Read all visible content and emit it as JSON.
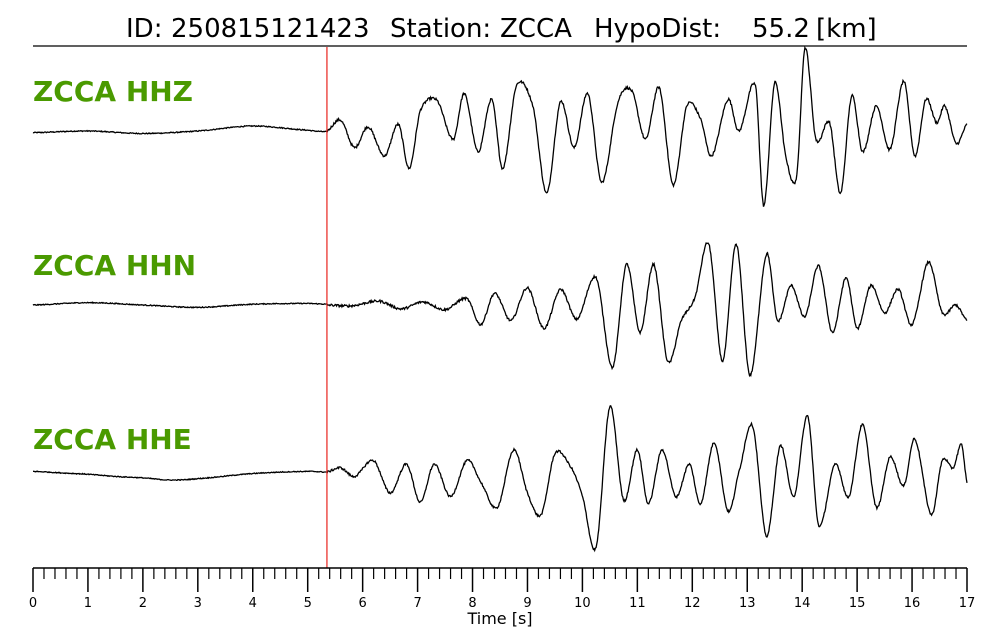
{
  "header": {
    "id_label": "ID:",
    "id_value": "250815121423",
    "station_label": "Station:",
    "station_value": "ZCCA",
    "hypodist_label": "HypoDist:",
    "hypodist_value": "55.2",
    "hypodist_unit": "[km]"
  },
  "colors": {
    "trace": "#000000",
    "label": "#4a9a00",
    "pick": "#e8231c",
    "axis": "#000000"
  },
  "chart_data": {
    "type": "line",
    "xlabel": "Time [s]",
    "xlim": [
      0,
      17
    ],
    "major_ticks": [
      0,
      1,
      2,
      3,
      4,
      5,
      6,
      7,
      8,
      9,
      10,
      11,
      12,
      13,
      14,
      15,
      16,
      17
    ],
    "minor_tick_step": 0.2,
    "pick_time": 5.35,
    "ylim": [
      -1,
      1
    ],
    "series": [
      {
        "name": "ZCCA HHZ",
        "pre_event": [
          [
            0,
            -0.02
          ],
          [
            1,
            0.0
          ],
          [
            2,
            -0.03
          ],
          [
            3,
            0.0
          ],
          [
            4,
            0.06
          ],
          [
            5,
            0.01
          ],
          [
            5.35,
            -0.01
          ]
        ],
        "coda": [
          [
            5.35,
            0.0
          ],
          [
            5.6,
            0.13
          ],
          [
            5.85,
            -0.2
          ],
          [
            6.1,
            0.05
          ],
          [
            6.4,
            -0.3
          ],
          [
            6.65,
            0.08
          ],
          [
            6.85,
            -0.45
          ],
          [
            7.05,
            0.25
          ],
          [
            7.35,
            0.37
          ],
          [
            7.65,
            -0.1
          ],
          [
            7.85,
            0.45
          ],
          [
            8.1,
            -0.25
          ],
          [
            8.35,
            0.38
          ],
          [
            8.55,
            -0.45
          ],
          [
            8.8,
            0.55
          ],
          [
            9.1,
            0.3
          ],
          [
            9.35,
            -0.75
          ],
          [
            9.6,
            0.35
          ],
          [
            9.85,
            -0.2
          ],
          [
            10.1,
            0.45
          ],
          [
            10.35,
            -0.62
          ],
          [
            10.65,
            0.35
          ],
          [
            10.9,
            0.48
          ],
          [
            11.15,
            -0.1
          ],
          [
            11.4,
            0.52
          ],
          [
            11.65,
            -0.65
          ],
          [
            11.9,
            0.3
          ],
          [
            12.15,
            0.15
          ],
          [
            12.35,
            -0.3
          ],
          [
            12.65,
            0.38
          ],
          [
            12.85,
            0.0
          ],
          [
            13.15,
            0.55
          ],
          [
            13.3,
            -0.9
          ],
          [
            13.5,
            0.58
          ],
          [
            13.7,
            -0.3
          ],
          [
            13.9,
            -0.55
          ],
          [
            14.05,
            1.0
          ],
          [
            14.25,
            -0.1
          ],
          [
            14.5,
            0.1
          ],
          [
            14.7,
            -0.75
          ],
          [
            14.9,
            0.42
          ],
          [
            15.1,
            -0.25
          ],
          [
            15.35,
            0.3
          ],
          [
            15.6,
            -0.22
          ],
          [
            15.85,
            0.6
          ],
          [
            16.05,
            -0.3
          ],
          [
            16.25,
            0.38
          ],
          [
            16.45,
            0.1
          ],
          [
            16.6,
            0.3
          ],
          [
            16.8,
            -0.15
          ],
          [
            17.0,
            0.08
          ]
        ]
      },
      {
        "name": "ZCCA HHN",
        "pre_event": [
          [
            0,
            0.0
          ],
          [
            1,
            0.03
          ],
          [
            2,
            0.0
          ],
          [
            3,
            -0.03
          ],
          [
            4,
            0.01
          ],
          [
            5,
            0.02
          ],
          [
            5.35,
            0.01
          ]
        ],
        "coda": [
          [
            5.35,
            0.0
          ],
          [
            5.8,
            -0.01
          ],
          [
            6.3,
            0.05
          ],
          [
            6.7,
            -0.05
          ],
          [
            7.1,
            0.04
          ],
          [
            7.5,
            -0.06
          ],
          [
            7.9,
            0.08
          ],
          [
            8.15,
            -0.25
          ],
          [
            8.4,
            0.15
          ],
          [
            8.7,
            -0.2
          ],
          [
            9.0,
            0.22
          ],
          [
            9.3,
            -0.3
          ],
          [
            9.6,
            0.2
          ],
          [
            9.9,
            -0.18
          ],
          [
            10.25,
            0.35
          ],
          [
            10.55,
            -0.8
          ],
          [
            10.8,
            0.52
          ],
          [
            11.05,
            -0.35
          ],
          [
            11.3,
            0.52
          ],
          [
            11.55,
            -0.72
          ],
          [
            11.8,
            -0.2
          ],
          [
            12.05,
            0.1
          ],
          [
            12.3,
            0.78
          ],
          [
            12.55,
            -0.72
          ],
          [
            12.8,
            0.78
          ],
          [
            13.05,
            -0.9
          ],
          [
            13.35,
            0.65
          ],
          [
            13.55,
            -0.2
          ],
          [
            13.8,
            0.25
          ],
          [
            14.05,
            -0.15
          ],
          [
            14.3,
            0.5
          ],
          [
            14.55,
            -0.35
          ],
          [
            14.8,
            0.35
          ],
          [
            15.0,
            -0.3
          ],
          [
            15.25,
            0.25
          ],
          [
            15.5,
            -0.1
          ],
          [
            15.75,
            0.2
          ],
          [
            16.0,
            -0.25
          ],
          [
            16.3,
            0.55
          ],
          [
            16.55,
            -0.1
          ],
          [
            16.8,
            0.0
          ],
          [
            17.0,
            -0.2
          ]
        ]
      },
      {
        "name": "ZCCA HHE",
        "pre_event": [
          [
            0,
            0.05
          ],
          [
            0.5,
            0.03
          ],
          [
            1,
            0.01
          ],
          [
            1.5,
            -0.02
          ],
          [
            2,
            -0.04
          ],
          [
            2.5,
            -0.07
          ],
          [
            3,
            -0.05
          ],
          [
            4,
            0.02
          ],
          [
            5,
            0.05
          ],
          [
            5.35,
            0.04
          ]
        ],
        "coda": [
          [
            5.35,
            0.04
          ],
          [
            5.6,
            0.1
          ],
          [
            5.85,
            -0.02
          ],
          [
            6.2,
            0.2
          ],
          [
            6.5,
            -0.25
          ],
          [
            6.8,
            0.15
          ],
          [
            7.05,
            -0.38
          ],
          [
            7.3,
            0.15
          ],
          [
            7.6,
            -0.3
          ],
          [
            7.9,
            0.2
          ],
          [
            8.15,
            -0.1
          ],
          [
            8.45,
            -0.45
          ],
          [
            8.75,
            0.35
          ],
          [
            9.0,
            -0.25
          ],
          [
            9.25,
            -0.55
          ],
          [
            9.5,
            0.3
          ],
          [
            9.8,
            0.1
          ],
          [
            10.0,
            -0.3
          ],
          [
            10.25,
            -1.0
          ],
          [
            10.5,
            0.95
          ],
          [
            10.75,
            -0.35
          ],
          [
            11.0,
            0.35
          ],
          [
            11.2,
            -0.4
          ],
          [
            11.45,
            0.35
          ],
          [
            11.7,
            -0.3
          ],
          [
            11.95,
            0.15
          ],
          [
            12.15,
            -0.4
          ],
          [
            12.4,
            0.45
          ],
          [
            12.65,
            -0.5
          ],
          [
            12.85,
            0.05
          ],
          [
            13.1,
            0.68
          ],
          [
            13.35,
            -0.85
          ],
          [
            13.6,
            0.4
          ],
          [
            13.85,
            -0.3
          ],
          [
            14.1,
            0.82
          ],
          [
            14.3,
            -0.7
          ],
          [
            14.6,
            0.15
          ],
          [
            14.85,
            -0.3
          ],
          [
            15.1,
            0.7
          ],
          [
            15.35,
            -0.45
          ],
          [
            15.6,
            0.25
          ],
          [
            15.85,
            -0.15
          ],
          [
            16.05,
            0.5
          ],
          [
            16.35,
            -0.55
          ],
          [
            16.55,
            0.2
          ],
          [
            16.75,
            0.1
          ],
          [
            16.9,
            0.42
          ],
          [
            17.0,
            -0.1
          ]
        ]
      }
    ]
  }
}
